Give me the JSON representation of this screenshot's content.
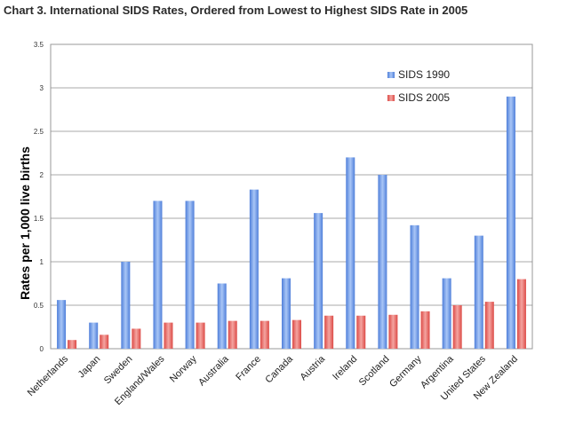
{
  "chart_data": {
    "type": "bar",
    "title": "Chart 3. International SIDS Rates, Ordered from Lowest to Highest SIDS Rate in 2005",
    "xlabel": "",
    "ylabel": "Rates per 1,000 live births",
    "ylim": [
      0,
      3.5
    ],
    "yticks": [
      "0",
      "0.5",
      "1",
      "1.5",
      "2",
      "2.5",
      "3",
      "3.5"
    ],
    "grid": true,
    "legend_position": "top-right",
    "categories": [
      "Netherlands",
      "Japan",
      "Sweden",
      "England/Wales",
      "Norway",
      "Australia",
      "France",
      "Canada",
      "Austria",
      "Ireland",
      "Scotland",
      "Germany",
      "Argentina",
      "United States",
      "New Zealand"
    ],
    "series": [
      {
        "name": "SIDS 1990",
        "color": "#5b8ee6",
        "values": [
          0.56,
          0.3,
          1.0,
          1.7,
          1.7,
          0.75,
          1.83,
          0.81,
          1.56,
          2.2,
          2.0,
          1.42,
          0.81,
          1.3,
          2.9
        ]
      },
      {
        "name": "SIDS 2005",
        "color": "#e85a55",
        "values": [
          0.1,
          0.16,
          0.23,
          0.3,
          0.3,
          0.32,
          0.32,
          0.33,
          0.38,
          0.38,
          0.39,
          0.43,
          0.5,
          0.54,
          0.8
        ]
      }
    ]
  }
}
